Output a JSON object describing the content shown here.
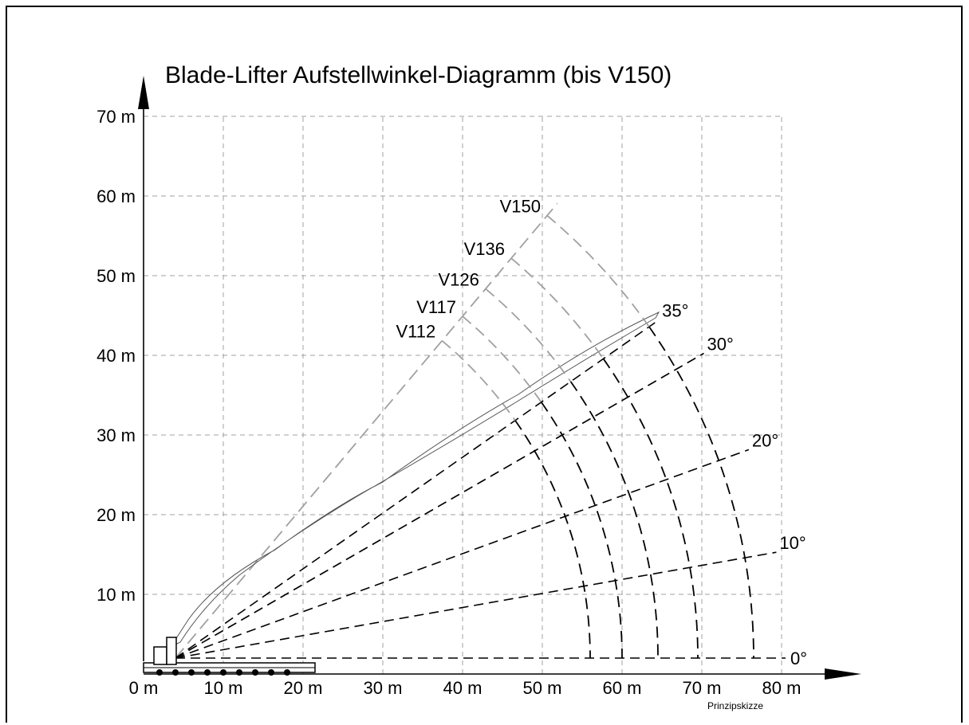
{
  "title": "Blade-Lifter Aufstellwinkel-Diagramm (bis V150)",
  "note": "Prinzipskizze",
  "colors": {
    "frame": "#000000",
    "grid": "#a0a0a0",
    "angle_line": "#000000",
    "arc": "#000000",
    "blade_line": "#a0a0a0",
    "blade_outline": "#555555"
  },
  "chart_data": {
    "type": "diagram",
    "x_axis": {
      "min": 0,
      "max": 80,
      "step": 10,
      "tick_labels": [
        "0 m",
        "10 m",
        "20 m",
        "30 m",
        "40 m",
        "50 m",
        "60 m",
        "70 m",
        "80 m"
      ]
    },
    "y_axis": {
      "min": 0,
      "max": 70,
      "step": 10,
      "tick_labels": [
        "10 m",
        "20 m",
        "30 m",
        "40 m",
        "50 m",
        "60 m",
        "70 m"
      ]
    },
    "grid": true,
    "pivot": {
      "x": 4,
      "y": 2
    },
    "angles": [
      {
        "deg": 0,
        "label": "0°"
      },
      {
        "deg": 10,
        "label": "10°"
      },
      {
        "deg": 20,
        "label": "20°"
      },
      {
        "deg": 30,
        "label": "30°"
      },
      {
        "deg": 35,
        "label": "35°"
      }
    ],
    "blade_angle_deg": 50,
    "blades": [
      {
        "name": "V112",
        "arc_end_x": 56
      },
      {
        "name": "V117",
        "arc_end_x": 60
      },
      {
        "name": "V126",
        "arc_end_x": 64.5
      },
      {
        "name": "V136",
        "arc_end_x": 69.5
      },
      {
        "name": "V150",
        "arc_end_x": 76.5
      }
    ]
  }
}
